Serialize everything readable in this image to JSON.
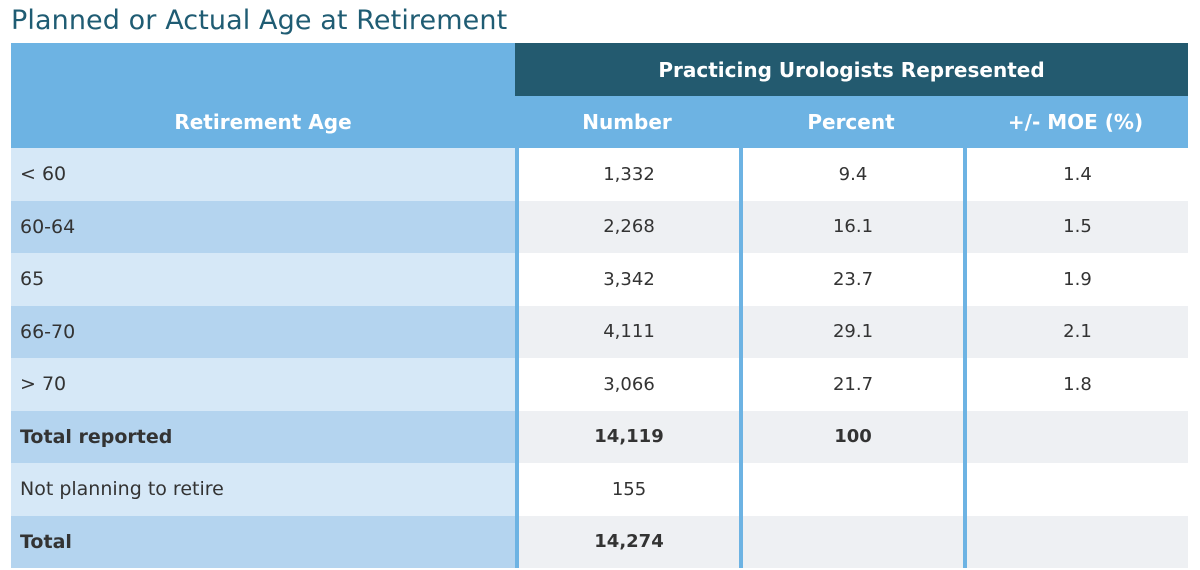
{
  "title": "Planned or Actual Age at Retirement",
  "table": {
    "group_header": "Practicing Urologists Represented",
    "columns": [
      "Retirement Age",
      "Number",
      "Percent",
      "+/- MOE (%)"
    ],
    "rows": [
      {
        "label": "< 60",
        "number": "1,332",
        "percent": "9.4",
        "moe": "1.4",
        "bold": false
      },
      {
        "label": "60-64",
        "number": "2,268",
        "percent": "16.1",
        "moe": "1.5",
        "bold": false
      },
      {
        "label": "65",
        "number": "3,342",
        "percent": "23.7",
        "moe": "1.9",
        "bold": false
      },
      {
        "label": "66-70",
        "number": "4,111",
        "percent": "29.1",
        "moe": "2.1",
        "bold": false
      },
      {
        "label": "> 70",
        "number": "3,066",
        "percent": "21.7",
        "moe": "1.8",
        "bold": false
      },
      {
        "label": "Total reported",
        "number": "14,119",
        "percent": "100",
        "moe": "",
        "bold": true
      },
      {
        "label": "Not planning to retire",
        "number": "155",
        "percent": "",
        "moe": "",
        "bold": false
      },
      {
        "label": "Total",
        "number": "14,274",
        "percent": "",
        "moe": "",
        "bold": true
      }
    ]
  },
  "colors": {
    "title": "#1f5c73",
    "header_light": "#6db3e3",
    "header_dark": "#235a6f",
    "row_label_light": "#d6e8f7",
    "row_label_dark": "#b4d4ef",
    "row_value_alt": "#eef0f3"
  }
}
